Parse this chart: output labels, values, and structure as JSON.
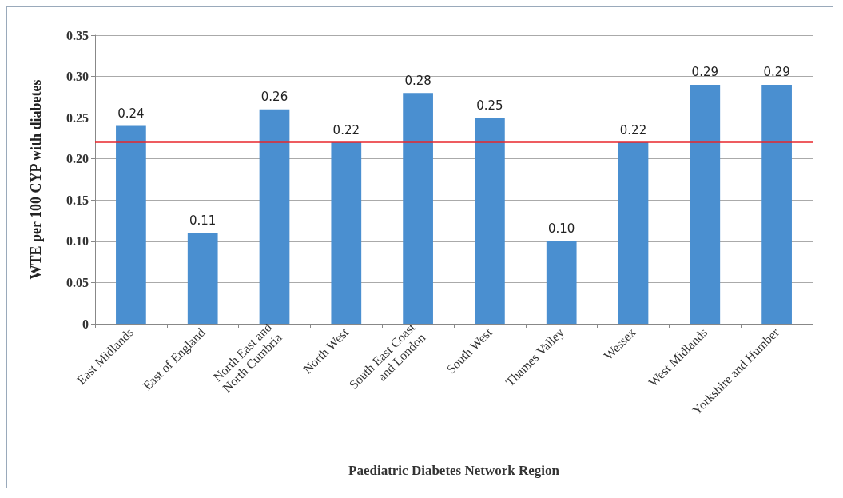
{
  "chart_data": {
    "type": "bar",
    "xlabel": "Paediatric Diabetes Network Region",
    "ylabel": "WTE per 100 CYP with diabetes",
    "categories": [
      "East Midlands",
      "East of England",
      "North East and\nNorth Cumbria",
      "North West",
      "South East Coast\nand London",
      "South West",
      "Thames Valley",
      "Wessex",
      "West Midlands",
      "Yorkshire and Humber"
    ],
    "values": [
      0.24,
      0.11,
      0.26,
      0.22,
      0.28,
      0.25,
      0.1,
      0.22,
      0.29,
      0.29
    ],
    "value_labels": [
      "0.24",
      "0.11",
      "0.26",
      "0.22",
      "0.28",
      "0.25",
      "0.10",
      "0.22",
      "0.29",
      "0.29"
    ],
    "color": "#4a8fd0",
    "ylim": [
      0,
      0.35
    ],
    "yticks": [
      0,
      0.05,
      {
        "value": 0.1,
        "label": "0.10"
      },
      0.15,
      {
        "value": 0.2,
        "label": "0.20"
      },
      0.25,
      {
        "value": 0.3,
        "label": "0.30"
      },
      0.35
    ],
    "grid": "y",
    "ref_lines": [
      {
        "axis": "y",
        "value": 0.22,
        "color": "#e8262b"
      }
    ]
  }
}
